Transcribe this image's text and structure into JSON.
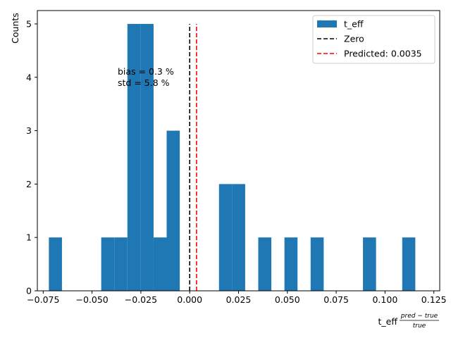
{
  "chart_data": {
    "type": "bar",
    "subtype": "histogram",
    "xlabel_prefix": "t_eff",
    "xlabel_frac_numerator": "pred − true",
    "xlabel_frac_denominator": "true",
    "ylabel": "Counts",
    "xlim": [
      -0.078,
      0.128
    ],
    "ylim": [
      0,
      5.25
    ],
    "xticks": [
      -0.075,
      -0.05,
      -0.025,
      0.0,
      0.025,
      0.05,
      0.075,
      0.1,
      0.125
    ],
    "xtick_labels": [
      "−0.075",
      "−0.050",
      "−0.025",
      "0.000",
      "0.025",
      "0.050",
      "0.075",
      "0.100",
      "0.125"
    ],
    "yticks": [
      0,
      1,
      2,
      3,
      4,
      5
    ],
    "ytick_labels": [
      "0",
      "1",
      "2",
      "3",
      "4",
      "5"
    ],
    "bins": [
      {
        "x0": -0.0721,
        "x1": -0.0654,
        "count": 1
      },
      {
        "x0": -0.0453,
        "x1": -0.0386,
        "count": 1
      },
      {
        "x0": -0.0386,
        "x1": -0.0319,
        "count": 1
      },
      {
        "x0": -0.0319,
        "x1": -0.0252,
        "count": 5
      },
      {
        "x0": -0.0252,
        "x1": -0.0185,
        "count": 5
      },
      {
        "x0": -0.0185,
        "x1": -0.0118,
        "count": 1
      },
      {
        "x0": -0.0118,
        "x1": -0.0051,
        "count": 3
      },
      {
        "x0": 0.015,
        "x1": 0.0217,
        "count": 2
      },
      {
        "x0": 0.0217,
        "x1": 0.0284,
        "count": 2
      },
      {
        "x0": 0.0351,
        "x1": 0.0418,
        "count": 1
      },
      {
        "x0": 0.0485,
        "x1": 0.0552,
        "count": 1
      },
      {
        "x0": 0.0619,
        "x1": 0.0686,
        "count": 1
      },
      {
        "x0": 0.0887,
        "x1": 0.0954,
        "count": 1
      },
      {
        "x0": 0.1088,
        "x1": 0.1155,
        "count": 1
      }
    ],
    "bar_color": "#1f77b4",
    "vlines": [
      {
        "name": "Zero",
        "x": 0.0,
        "color": "#000000",
        "y_top": 5
      },
      {
        "name": "Predicted: 0.0035",
        "x": 0.0035,
        "color": "#ff0000",
        "y_top": 5
      }
    ],
    "annotation": [
      "bias = 0.3 %",
      "std = 5.8 %"
    ],
    "legend": {
      "placement": "top-right",
      "entries": [
        {
          "label": "t_eff",
          "kind": "patch",
          "color": "#1f77b4"
        },
        {
          "label": "Zero",
          "kind": "dashed",
          "color": "#000000"
        },
        {
          "label": "Predicted: 0.0035",
          "kind": "dashed",
          "color": "#ff0000"
        }
      ]
    },
    "grid": false
  }
}
